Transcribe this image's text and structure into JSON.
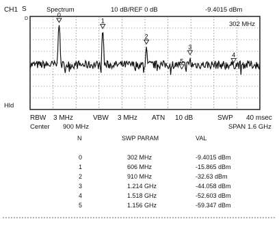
{
  "header": {
    "channel": "CH1",
    "mode": "S",
    "title": "Spectrum",
    "scale_ref": "10 dB/REF 0 dB",
    "marker_readout": "-9.4015 dBm",
    "marker_freq": "302 MHz"
  },
  "side": {
    "trig_mark": "D",
    "hold": "Hld"
  },
  "settings": {
    "rbw_label": "RBW",
    "rbw_value": "3 MHz",
    "vbw_label": "VBW",
    "vbw_value": "3 MHz",
    "atn_label": "ATN",
    "atn_value": "10 dB",
    "swp_label": "SWP",
    "swp_value": "40 msec",
    "center_label": "Center",
    "center_value": "900 MHz",
    "span_label": "SPAN",
    "span_value": "1.6 GHz"
  },
  "marker_table": {
    "headers": [
      "N",
      "SWP PARAM",
      "VAL"
    ],
    "rows": [
      {
        "n": "0",
        "param": "302 MHz",
        "val": "-9.4015 dBm"
      },
      {
        "n": "1",
        "param": "606 MHz",
        "val": "-15.865 dBm"
      },
      {
        "n": "2",
        "param": "910 MHz",
        "val": "-32.63 dBm"
      },
      {
        "n": "3",
        "param": "1.214 GHz",
        "val": "-44.058 dBm"
      },
      {
        "n": "4",
        "param": "1.518 GHz",
        "val": "-52.603 dBm"
      },
      {
        "n": "5",
        "param": "1.156 GHz",
        "val": "-59.347 dBm"
      }
    ]
  },
  "chart_data": {
    "type": "line",
    "title": "Spectrum",
    "xlabel": "",
    "ylabel": "",
    "xlim": [
      100,
      1700
    ],
    "ylim": [
      -100,
      0
    ],
    "grid": true,
    "reference_level_dbm": 0,
    "scale_db_per_div": 10,
    "center_mhz": 900,
    "span_mhz": 1600,
    "noise_floor_dbm": -52,
    "markers": [
      {
        "label": "0",
        "x": 302,
        "y": -9.4015
      },
      {
        "label": "1",
        "x": 606,
        "y": -15.865
      },
      {
        "label": "2",
        "x": 910,
        "y": -32.63
      },
      {
        "label": "3",
        "x": 1214,
        "y": -44.058
      },
      {
        "label": "4",
        "x": 1518,
        "y": -52.603
      },
      {
        "label": "5",
        "x": 1156,
        "y": -59.347
      }
    ],
    "peaks": [
      {
        "x": 302,
        "y": -9.4
      },
      {
        "x": 606,
        "y": -15.9
      },
      {
        "x": 910,
        "y": -32.6
      },
      {
        "x": 1214,
        "y": -44.1
      },
      {
        "x": 1518,
        "y": -52.6
      }
    ]
  }
}
